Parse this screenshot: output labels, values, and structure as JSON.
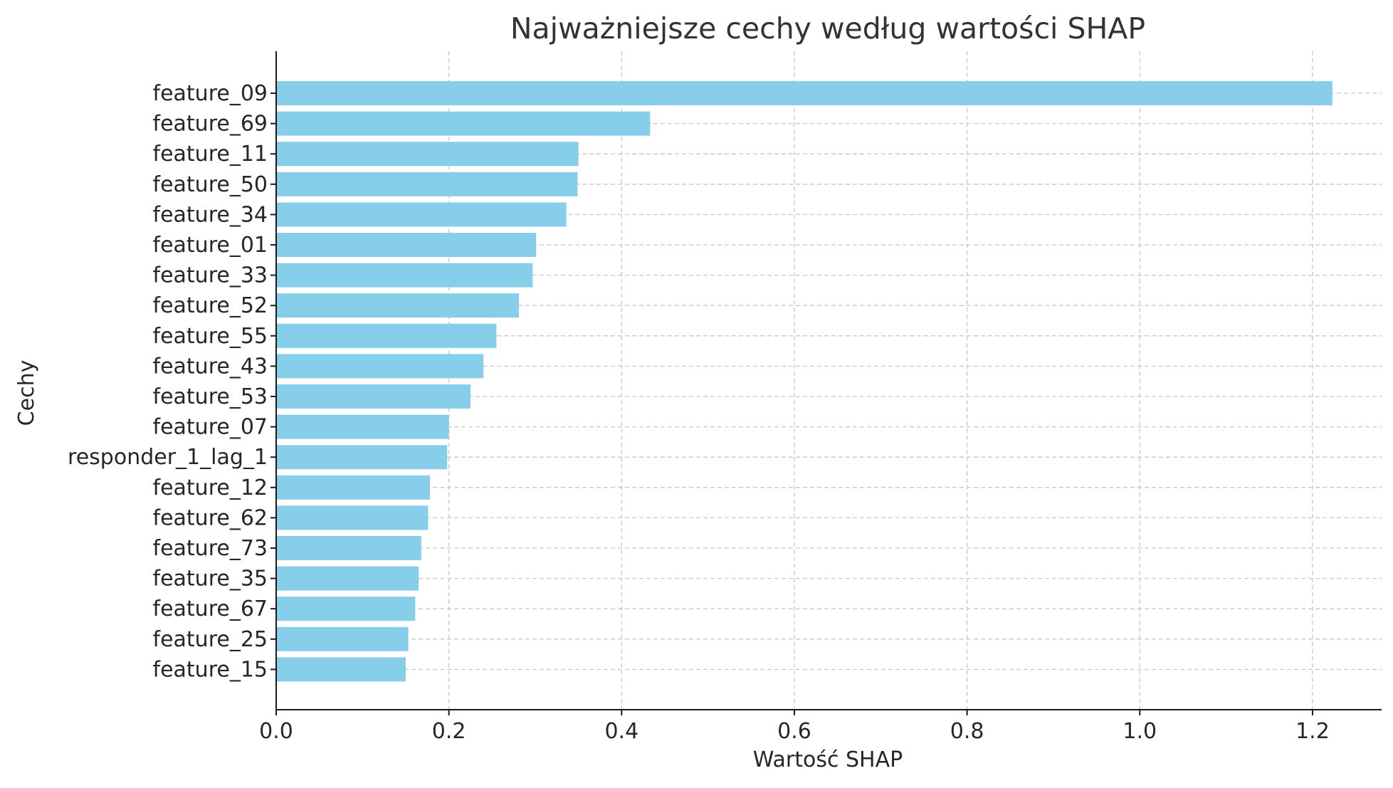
{
  "chart_data": {
    "type": "bar",
    "orientation": "horizontal",
    "title": "Najważniejsze cechy według wartości SHAP",
    "xlabel": "Wartość SHAP",
    "ylabel": "Cechy",
    "xlim": [
      0,
      1.28
    ],
    "xticks": [
      0.0,
      0.2,
      0.4,
      0.6,
      0.8,
      1.0,
      1.2
    ],
    "xtick_labels": [
      "0.0",
      "0.2",
      "0.4",
      "0.6",
      "0.8",
      "1.0",
      "1.2"
    ],
    "grid": true,
    "bar_color": "#87ceeb",
    "categories": [
      "feature_09",
      "feature_69",
      "feature_11",
      "feature_50",
      "feature_34",
      "feature_01",
      "feature_33",
      "feature_52",
      "feature_55",
      "feature_43",
      "feature_53",
      "feature_07",
      "responder_1_lag_1",
      "feature_12",
      "feature_62",
      "feature_73",
      "feature_35",
      "feature_67",
      "feature_25",
      "feature_15"
    ],
    "values": [
      1.223,
      0.433,
      0.35,
      0.349,
      0.336,
      0.301,
      0.297,
      0.281,
      0.255,
      0.24,
      0.225,
      0.2,
      0.198,
      0.178,
      0.176,
      0.168,
      0.165,
      0.161,
      0.153,
      0.15
    ]
  }
}
